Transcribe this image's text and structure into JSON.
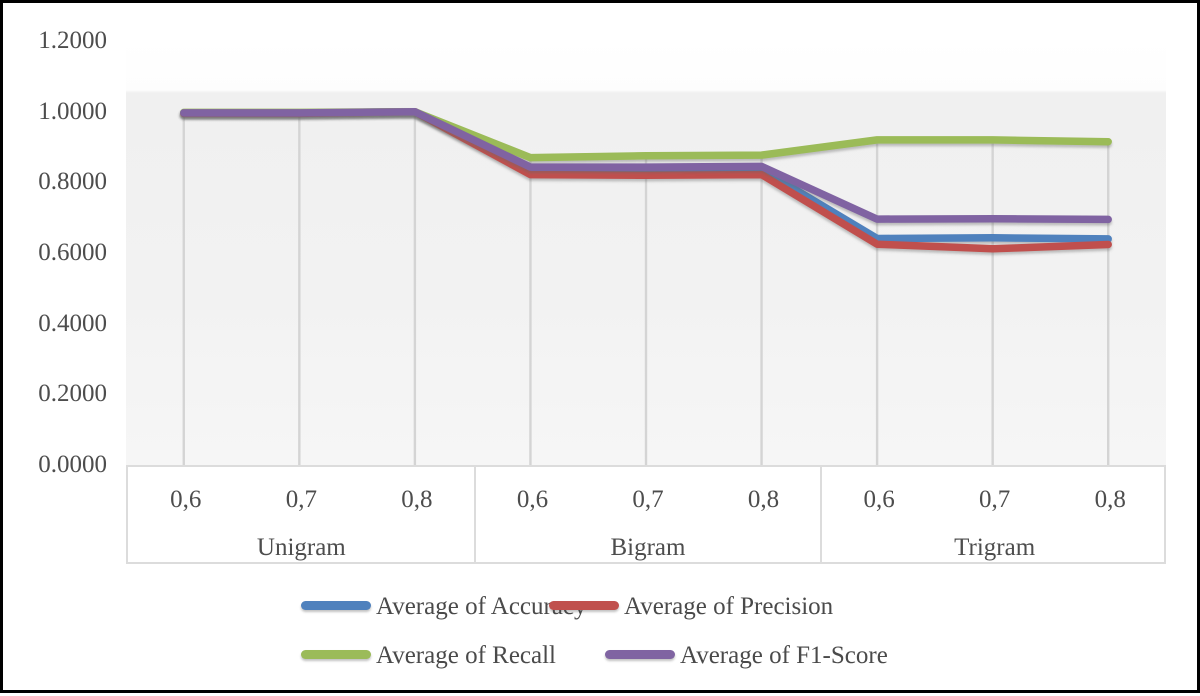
{
  "chart_data": {
    "type": "line",
    "title": "",
    "y_axis": {
      "min": 0,
      "max": 1.2,
      "step": 0.2,
      "tick_labels": [
        "0.0000",
        "0.2000",
        "0.4000",
        "0.6000",
        "0.8000",
        "1.0000",
        "1.2000"
      ]
    },
    "x_axis": {
      "groups": [
        {
          "label": "Unigram",
          "ticks": [
            "0,6",
            "0,7",
            "0,8"
          ]
        },
        {
          "label": "Bigram",
          "ticks": [
            "0,6",
            "0,7",
            "0,8"
          ]
        },
        {
          "label": "Trigram",
          "ticks": [
            "0,6",
            "0,7",
            "0,8"
          ]
        }
      ]
    },
    "series": [
      {
        "name": "Average of Accuracy",
        "color": "#4F81BD",
        "values": [
          0.9965,
          0.9965,
          1.0,
          0.833,
          0.835,
          0.837,
          0.641,
          0.643,
          0.64
        ]
      },
      {
        "name": "Average of Precision",
        "color": "#C0504D",
        "values": [
          0.995,
          0.995,
          1.0,
          0.822,
          0.82,
          0.822,
          0.625,
          0.612,
          0.624
        ]
      },
      {
        "name": "Average of Recall",
        "color": "#9BBB59",
        "values": [
          0.998,
          0.998,
          1.0,
          0.87,
          0.875,
          0.877,
          0.92,
          0.92,
          0.915
        ]
      },
      {
        "name": "Average of F1-Score",
        "color": "#8064A2",
        "values": [
          0.9965,
          0.9965,
          1.0,
          0.843,
          0.843,
          0.845,
          0.696,
          0.697,
          0.695
        ]
      }
    ],
    "legend": {
      "position": "bottom",
      "rows": [
        [
          "Average of Accuracy",
          "Average of Precision"
        ],
        [
          "Average of Recall",
          "Average of F1-Score"
        ]
      ]
    },
    "grid": "vertical-drop-lines",
    "plot_background": "light-gray-gradient",
    "ylim": [
      0,
      1.2
    ]
  },
  "colors": {
    "accuracy": "#4F81BD",
    "precision": "#C0504D",
    "recall": "#9BBB59",
    "f1_score": "#8064A2",
    "drop_line": "#d4d4d4",
    "axis_border": "#dcdcdc",
    "text": "#4d4d4d"
  }
}
